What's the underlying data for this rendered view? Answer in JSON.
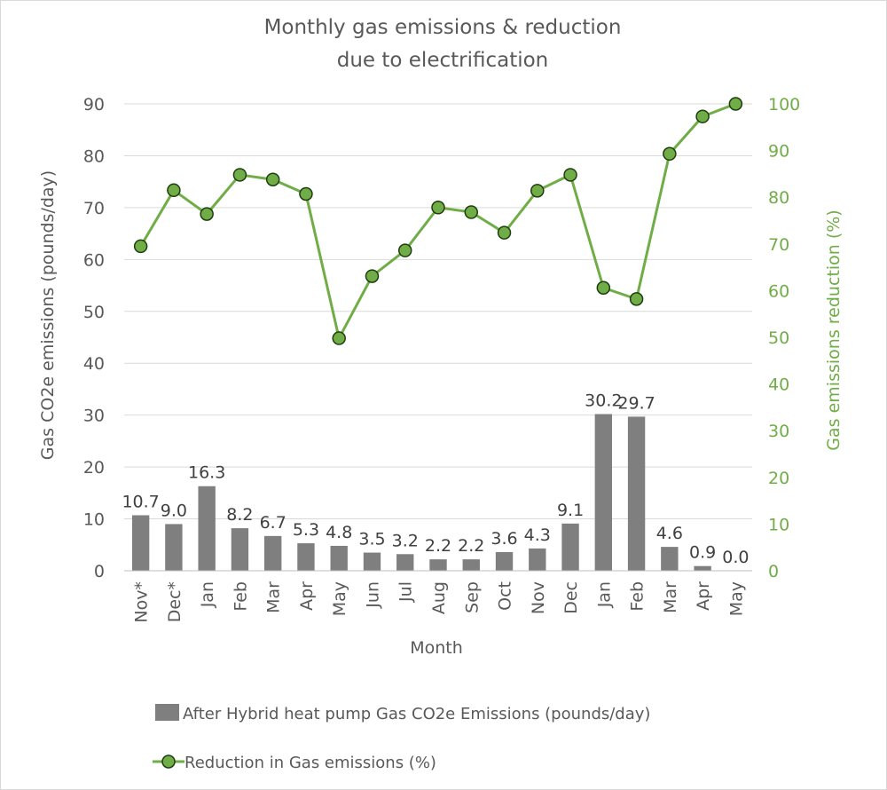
{
  "chart_data": {
    "type": "bar",
    "title": [
      "Monthly gas emissions & reduction",
      "due to electrification"
    ],
    "xlabel": "Month",
    "ylabel": "Gas CO2e emissions (pounds/day)",
    "y2label": "Gas emissions reduction (%)",
    "ylim": [
      0,
      90
    ],
    "y2lim": [
      0,
      100
    ],
    "yticks": [
      0,
      10,
      20,
      30,
      40,
      50,
      60,
      70,
      80,
      90
    ],
    "y2ticks": [
      0,
      10,
      20,
      30,
      40,
      50,
      60,
      70,
      80,
      90,
      100
    ],
    "categories": [
      "Nov*",
      "Dec*",
      "Jan",
      "Feb",
      "Mar",
      "Apr",
      "May",
      "Jun",
      "Jul",
      "Aug",
      "Sep",
      "Oct",
      "Nov",
      "Dec",
      "Jan",
      "Feb",
      "Mar",
      "Apr",
      "May"
    ],
    "series": [
      {
        "name": "After Hybrid heat pump Gas CO2e Emissions (pounds/day)",
        "type": "bar",
        "axis": "left",
        "color": "#7f7f7f",
        "values": [
          10.7,
          9.0,
          16.3,
          8.2,
          6.7,
          5.3,
          4.8,
          3.5,
          3.2,
          2.2,
          2.2,
          3.6,
          4.3,
          9.1,
          30.2,
          29.7,
          4.6,
          0.9,
          0.0
        ],
        "labels": [
          "10.7",
          "9.0",
          "16.3",
          "8.2",
          "6.7",
          "5.3",
          "4.8",
          "3.5",
          "3.2",
          "2.2",
          "2.2",
          "3.6",
          "4.3",
          "9.1",
          "30.2",
          "29.7",
          "4.6",
          "0.9",
          "0.0"
        ]
      },
      {
        "name": "Reduction in Gas emissions (%)",
        "type": "line",
        "axis": "right",
        "color": "#70ad47",
        "values": [
          69.5,
          81.5,
          76.4,
          84.8,
          83.8,
          80.7,
          49.8,
          63.1,
          68.6,
          77.8,
          76.8,
          72.4,
          81.4,
          84.8,
          60.6,
          58.2,
          89.3,
          97.3,
          100.0
        ]
      }
    ],
    "legend_position": "bottom"
  },
  "colors": {
    "axis_text": "#595959",
    "right_axis_text": "#70ad47",
    "bar": "#7f7f7f",
    "line": "#70ad47",
    "marker_edge": "#1f3d10",
    "grid": "#d9d9d9"
  }
}
